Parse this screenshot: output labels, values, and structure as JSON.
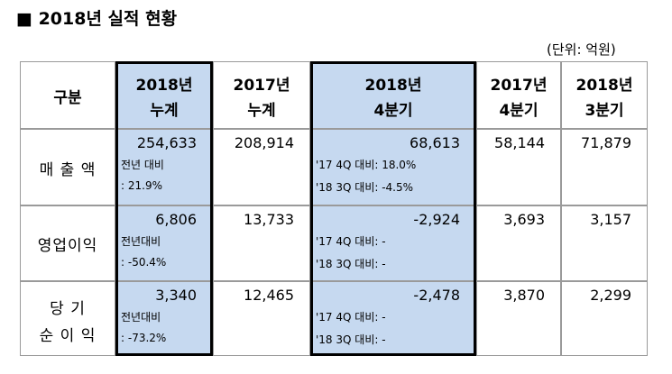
{
  "title": "■ 2018년 실적 현황",
  "unit": "(단위: 억원)",
  "table": {
    "header": [
      [
        "구분"
      ],
      [
        "2018년",
        "누계"
      ],
      [
        "2017년",
        "누계"
      ],
      [
        "2018년",
        "4분기"
      ],
      [
        "2017년",
        "4분기"
      ],
      [
        "2018년",
        "3분기"
      ]
    ],
    "rows": [
      [
        [
          "매 출 액"
        ],
        [
          "254,633",
          "전년 대비",
          ": 21.9%"
        ],
        [
          "208,914"
        ],
        [
          "68,613",
          "'17 4Q 대비: 18.0%",
          "'18 3Q 대비: -4.5%"
        ],
        [
          "58,144"
        ],
        [
          "71,879"
        ]
      ],
      [
        [
          "영업이익"
        ],
        [
          "6,806",
          "전년대비",
          ": -50.4%"
        ],
        [
          "13,733"
        ],
        [
          "-2,924",
          "'17 4Q 대비: -",
          "'18 3Q 대비: -"
        ],
        [
          "3,693"
        ],
        [
          "3,157"
        ]
      ],
      [
        [
          "당 기",
          "순 이 익"
        ],
        [
          "3,340",
          "전년대비",
          ": -73.2%"
        ],
        [
          "12,465"
        ],
        [
          "-2,478",
          "'17 4Q 대비: -",
          "'18 3Q 대비: -"
        ],
        [
          "3,870"
        ],
        [
          "2,299"
        ]
      ]
    ]
  }
}
